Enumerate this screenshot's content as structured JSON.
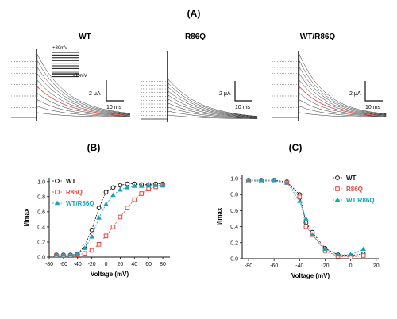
{
  "panels": {
    "A": {
      "label": "(A)"
    },
    "B": {
      "label": "(B)"
    },
    "C": {
      "label": "(C)"
    }
  },
  "traces": {
    "titles": [
      "WT",
      "R86Q",
      "WT/R86Q"
    ],
    "scale_y": "2 μA",
    "scale_x": "10 ms",
    "protocol_high": "+80mV",
    "protocol_low": "-80mV"
  },
  "colors": {
    "wt": "#111111",
    "r86q": "#e8463c",
    "wtr86q": "#1aa3b8"
  },
  "chart_data": [
    {
      "type": "scatter",
      "panel": "B",
      "xlabel": "Voltage (mV)",
      "ylabel": "I/Imax",
      "xlim": [
        -80,
        90
      ],
      "ylim": [
        0,
        1.05
      ],
      "xticks": [
        -80,
        -60,
        -40,
        -20,
        0,
        20,
        40,
        60,
        80
      ],
      "yticks": [
        0.0,
        0.2,
        0.4,
        0.6,
        0.8,
        1.0
      ],
      "legend_position": "top-left",
      "series": [
        {
          "name": "WT",
          "marker": "circle",
          "color": "#111111",
          "x": [
            -70,
            -60,
            -50,
            -40,
            -30,
            -20,
            -10,
            0,
            10,
            20,
            30,
            40,
            50,
            60,
            70,
            80
          ],
          "y": [
            0.03,
            0.03,
            0.03,
            0.04,
            0.15,
            0.36,
            0.65,
            0.86,
            0.92,
            0.95,
            0.97,
            0.97,
            0.96,
            0.96,
            0.97,
            0.97
          ]
        },
        {
          "name": "R86Q",
          "marker": "square",
          "color": "#e8463c",
          "x": [
            -70,
            -60,
            -50,
            -40,
            -30,
            -20,
            -10,
            0,
            10,
            20,
            30,
            40,
            50,
            60,
            70,
            80
          ],
          "y": [
            0.02,
            0.02,
            0.02,
            0.03,
            0.05,
            0.09,
            0.17,
            0.28,
            0.4,
            0.53,
            0.65,
            0.76,
            0.84,
            0.9,
            0.93,
            0.95
          ]
        },
        {
          "name": "WT/R86Q",
          "marker": "triangle",
          "color": "#1aa3b8",
          "x": [
            -70,
            -60,
            -50,
            -40,
            -30,
            -20,
            -10,
            0,
            10,
            20,
            30,
            40,
            50,
            60,
            70,
            80
          ],
          "y": [
            0.03,
            0.03,
            0.03,
            0.04,
            0.12,
            0.27,
            0.52,
            0.7,
            0.82,
            0.89,
            0.92,
            0.94,
            0.94,
            0.95,
            0.95,
            0.95
          ]
        }
      ]
    },
    {
      "type": "scatter",
      "panel": "C",
      "xlabel": "Voltage (mV)",
      "ylabel": "I/Imax",
      "xlim": [
        -85,
        22
      ],
      "ylim": [
        0,
        1.05
      ],
      "xticks": [
        -80,
        -60,
        -40,
        -20,
        0,
        20
      ],
      "yticks": [
        0.0,
        0.2,
        0.4,
        0.6,
        0.8,
        1.0
      ],
      "legend_position": "top-right",
      "series": [
        {
          "name": "WT",
          "marker": "circle",
          "color": "#111111",
          "x": [
            -80,
            -70,
            -60,
            -50,
            -40,
            -35,
            -30,
            -20,
            -10,
            0,
            10
          ],
          "y": [
            0.98,
            0.98,
            0.98,
            0.96,
            0.8,
            0.45,
            0.33,
            0.13,
            0.05,
            0.04,
            0.06
          ]
        },
        {
          "name": "R86Q",
          "marker": "square",
          "color": "#e8463c",
          "x": [
            -80,
            -70,
            -60,
            -50,
            -40,
            -35,
            -30,
            -20,
            -10,
            0,
            10
          ],
          "y": [
            0.97,
            0.97,
            0.97,
            0.95,
            0.77,
            0.4,
            0.3,
            0.1,
            0.03,
            0.02,
            0.04
          ]
        },
        {
          "name": "WT/R86Q",
          "marker": "triangle",
          "color": "#1aa3b8",
          "x": [
            -80,
            -70,
            -60,
            -50,
            -40,
            -35,
            -30,
            -20,
            -10,
            0,
            10
          ],
          "y": [
            0.98,
            0.98,
            0.98,
            0.95,
            0.72,
            0.5,
            0.3,
            0.12,
            0.05,
            0.05,
            0.12
          ]
        }
      ]
    }
  ]
}
